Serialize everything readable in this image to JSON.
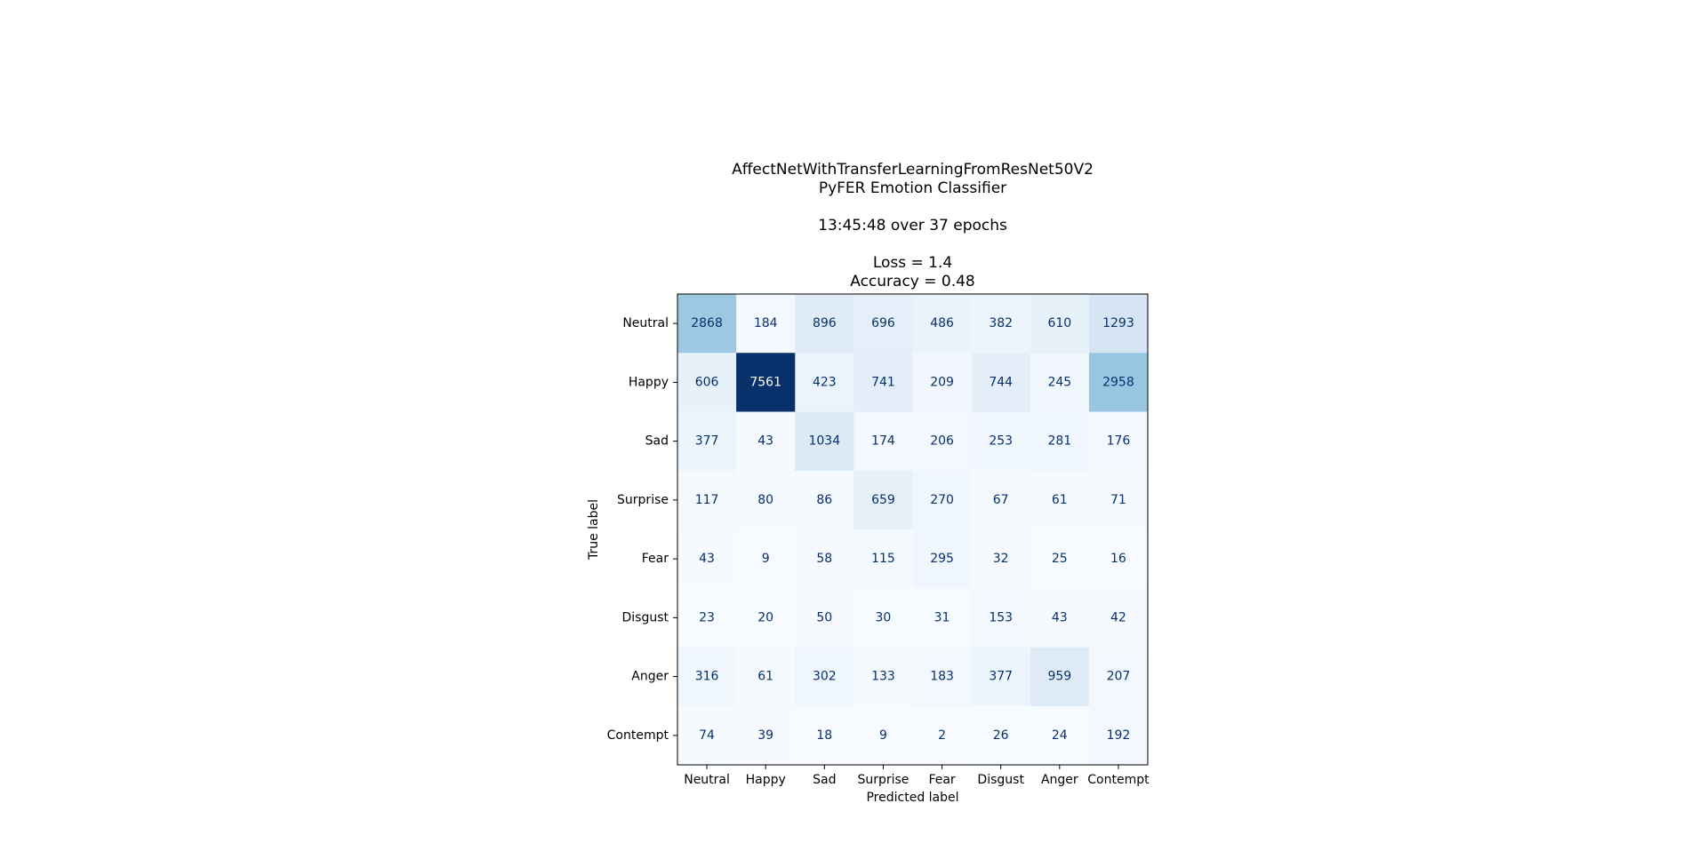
{
  "chart_data": {
    "type": "heatmap",
    "title_lines": [
      "AffectNetWithTransferLearningFromResNet50V2",
      "PyFER Emotion Classifier",
      "",
      "13:45:48 over 37 epochs",
      "",
      "Loss = 1.4",
      "Accuracy = 0.48"
    ],
    "xlabel": "Predicted label",
    "ylabel": "True label",
    "x_categories": [
      "Neutral",
      "Happy",
      "Sad",
      "Surprise",
      "Fear",
      "Disgust",
      "Anger",
      "Contempt"
    ],
    "y_categories": [
      "Neutral",
      "Happy",
      "Sad",
      "Surprise",
      "Fear",
      "Disgust",
      "Anger",
      "Contempt"
    ],
    "matrix": [
      [
        2868,
        184,
        896,
        696,
        486,
        382,
        610,
        1293
      ],
      [
        606,
        7561,
        423,
        741,
        209,
        744,
        245,
        2958
      ],
      [
        377,
        43,
        1034,
        174,
        206,
        253,
        281,
        176
      ],
      [
        117,
        80,
        86,
        659,
        270,
        67,
        61,
        71
      ],
      [
        43,
        9,
        58,
        115,
        295,
        32,
        25,
        16
      ],
      [
        23,
        20,
        50,
        30,
        31,
        153,
        43,
        42
      ],
      [
        316,
        61,
        302,
        133,
        183,
        377,
        959,
        207
      ],
      [
        74,
        39,
        18,
        9,
        2,
        26,
        24,
        192
      ]
    ],
    "colormap": "Blues",
    "colormap_stops": [
      "#f7fbff",
      "#deebf7",
      "#c6dbef",
      "#9ecae1",
      "#6baed6",
      "#4292c6",
      "#2171b5",
      "#08519c",
      "#08306b"
    ],
    "text_color_dark": "#08306b",
    "text_color_light": "#ffffff"
  }
}
